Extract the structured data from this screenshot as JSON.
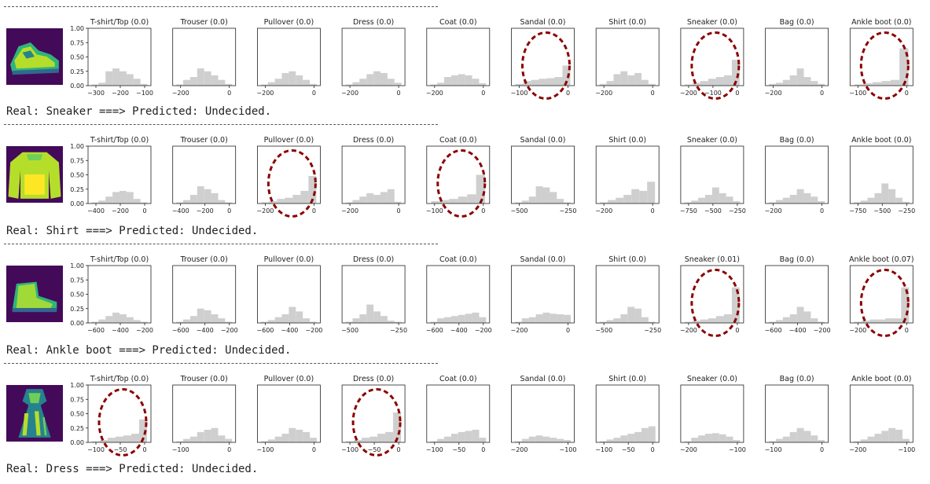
{
  "chart_data": [
    {
      "type": "bar",
      "caption": "Real: Sneaker ===> Predicted: Undecided.",
      "panels": [
        {
          "title": "T-shirt/Top (0.0)",
          "xticks": [
            "−300",
            "−200",
            "−100"
          ],
          "bars": [
            0.02,
            0.05,
            0.25,
            0.3,
            0.25,
            0.2,
            0.12,
            0.03
          ]
        },
        {
          "title": "Trouser (0.0)",
          "xticks": [
            "−200",
            "0"
          ],
          "bars": [
            0.02,
            0.1,
            0.15,
            0.3,
            0.25,
            0.18,
            0.1,
            0.03
          ]
        },
        {
          "title": "Pullover (0.0)",
          "xticks": [
            "−200",
            "0"
          ],
          "bars": [
            0.02,
            0.06,
            0.12,
            0.22,
            0.25,
            0.18,
            0.1,
            0.03
          ]
        },
        {
          "title": "Dress (0.0)",
          "xticks": [
            "−200",
            "0"
          ],
          "bars": [
            0.02,
            0.06,
            0.12,
            0.2,
            0.25,
            0.22,
            0.12,
            0.05
          ]
        },
        {
          "title": "Coat (0.0)",
          "xticks": [
            "−200",
            "0"
          ],
          "bars": [
            0.02,
            0.05,
            0.15,
            0.18,
            0.2,
            0.18,
            0.12,
            0.04
          ]
        },
        {
          "title": "Sandal (0.0)",
          "xticks": [
            "−100",
            "0"
          ],
          "bars": [
            0.03,
            0.08,
            0.1,
            0.12,
            0.13,
            0.15,
            0.35
          ]
        },
        {
          "title": "Shirt (0.0)",
          "xticks": [
            "−200",
            "0"
          ],
          "bars": [
            0.03,
            0.08,
            0.2,
            0.25,
            0.18,
            0.22,
            0.1,
            0.03
          ]
        },
        {
          "title": "Sneaker (0.0)",
          "xticks": [
            "−200",
            "−100",
            "0"
          ],
          "bars": [
            0.02,
            0.05,
            0.08,
            0.12,
            0.15,
            0.18,
            0.45
          ]
        },
        {
          "title": "Bag (0.0)",
          "xticks": [
            "−200",
            "0"
          ],
          "bars": [
            0.03,
            0.05,
            0.1,
            0.18,
            0.3,
            0.15,
            0.08,
            0.03
          ]
        },
        {
          "title": "Ankle boot (0.0)",
          "xticks": [
            "−100",
            "0"
          ],
          "bars": [
            0.02,
            0.04,
            0.06,
            0.08,
            0.1,
            0.65
          ]
        }
      ],
      "highlighted": [
        5,
        7,
        9
      ]
    },
    {
      "type": "bar",
      "caption": "Real: Shirt ===> Predicted: Undecided.",
      "panels": [
        {
          "title": "T-shirt/Top (0.0)",
          "xticks": [
            "−400",
            "−200",
            "0"
          ],
          "bars": [
            0.02,
            0.05,
            0.12,
            0.2,
            0.22,
            0.2,
            0.08,
            0.02
          ]
        },
        {
          "title": "Trouser (0.0)",
          "xticks": [
            "−400",
            "−200",
            "0"
          ],
          "bars": [
            0.02,
            0.06,
            0.15,
            0.3,
            0.25,
            0.18,
            0.06,
            0.02
          ]
        },
        {
          "title": "Pullover (0.0)",
          "xticks": [
            "−200",
            "0"
          ],
          "bars": [
            0.02,
            0.04,
            0.08,
            0.1,
            0.15,
            0.22,
            0.48
          ]
        },
        {
          "title": "Dress (0.0)",
          "xticks": [
            "−200",
            "0"
          ],
          "bars": [
            0.02,
            0.06,
            0.12,
            0.18,
            0.15,
            0.2,
            0.25,
            0.03
          ]
        },
        {
          "title": "Coat (0.0)",
          "xticks": [
            "−100",
            "0"
          ],
          "bars": [
            0.04,
            0.06,
            0.08,
            0.12,
            0.16,
            0.5
          ]
        },
        {
          "title": "Sandal (0.0)",
          "xticks": [
            "−500",
            "−250"
          ],
          "bars": [
            0.02,
            0.05,
            0.12,
            0.3,
            0.28,
            0.2,
            0.08,
            0.02
          ]
        },
        {
          "title": "Shirt (0.0)",
          "xticks": [
            "−200",
            "0"
          ],
          "bars": [
            0.02,
            0.06,
            0.1,
            0.15,
            0.25,
            0.22,
            0.38
          ]
        },
        {
          "title": "Sneaker (0.0)",
          "xticks": [
            "−750",
            "−500",
            "−250"
          ],
          "bars": [
            0.02,
            0.05,
            0.1,
            0.15,
            0.28,
            0.18,
            0.12,
            0.04
          ]
        },
        {
          "title": "Bag (0.0)",
          "xticks": [
            "−200",
            "0"
          ],
          "bars": [
            0.02,
            0.06,
            0.1,
            0.15,
            0.25,
            0.18,
            0.12,
            0.04
          ]
        },
        {
          "title": "Ankle boot (0.0)",
          "xticks": [
            "−750",
            "−500",
            "−250"
          ],
          "bars": [
            0.02,
            0.05,
            0.1,
            0.18,
            0.35,
            0.25,
            0.1,
            0.03
          ]
        }
      ],
      "highlighted": [
        2,
        4
      ]
    },
    {
      "type": "bar",
      "caption": "Real: Ankle boot ===> Predicted: Undecided.",
      "panels": [
        {
          "title": "T-shirt/Top (0.0)",
          "xticks": [
            "−600",
            "−400",
            "−200"
          ],
          "bars": [
            0.02,
            0.06,
            0.12,
            0.18,
            0.15,
            0.1,
            0.05,
            0.02
          ]
        },
        {
          "title": "Trouser (0.0)",
          "xticks": [
            "−600",
            "−400",
            "−200"
          ],
          "bars": [
            0.02,
            0.06,
            0.12,
            0.25,
            0.22,
            0.15,
            0.08,
            0.02
          ]
        },
        {
          "title": "Pullover (0.0)",
          "xticks": [
            "−600",
            "−400",
            "−200"
          ],
          "bars": [
            0.02,
            0.05,
            0.1,
            0.15,
            0.28,
            0.2,
            0.08,
            0.02
          ]
        },
        {
          "title": "Dress (0.0)",
          "xticks": [
            "−500",
            "−250"
          ],
          "bars": [
            0.02,
            0.08,
            0.15,
            0.32,
            0.2,
            0.12,
            0.04,
            0.02
          ]
        },
        {
          "title": "Coat (0.0)",
          "xticks": [
            "−600",
            "−400",
            "−200"
          ],
          "bars": [
            0.02,
            0.08,
            0.1,
            0.12,
            0.14,
            0.16,
            0.18,
            0.1
          ]
        },
        {
          "title": "Sandal (0.0)",
          "xticks": [
            "−200",
            "0"
          ],
          "bars": [
            0.02,
            0.08,
            0.1,
            0.15,
            0.18,
            0.16,
            0.15,
            0.14
          ]
        },
        {
          "title": "Shirt (0.0)",
          "xticks": [
            "−500",
            "−250"
          ],
          "bars": [
            0.02,
            0.05,
            0.08,
            0.15,
            0.28,
            0.25,
            0.1,
            0.02
          ]
        },
        {
          "title": "Sneaker (0.01)",
          "xticks": [
            "−200",
            "0"
          ],
          "bars": [
            0.02,
            0.04,
            0.06,
            0.08,
            0.12,
            0.15,
            0.62
          ]
        },
        {
          "title": "Bag (0.0)",
          "xticks": [
            "−600",
            "−400",
            "−200"
          ],
          "bars": [
            0.02,
            0.05,
            0.1,
            0.15,
            0.28,
            0.2,
            0.08,
            0.02
          ]
        },
        {
          "title": "Ankle boot (0.07)",
          "xticks": [
            "−200",
            "0"
          ],
          "bars": [
            0.02,
            0.04,
            0.06,
            0.06,
            0.08,
            0.08,
            0.62
          ]
        }
      ],
      "highlighted": [
        7,
        9
      ]
    },
    {
      "type": "bar",
      "caption": "Real: Dress ===> Predicted: Undecided.",
      "panels": [
        {
          "title": "T-shirt/Top (0.0)",
          "xticks": [
            "−100",
            "−50",
            "0"
          ],
          "bars": [
            0.02,
            0.04,
            0.08,
            0.1,
            0.12,
            0.15,
            0.4
          ]
        },
        {
          "title": "Trouser (0.0)",
          "xticks": [
            "−100",
            "0"
          ],
          "bars": [
            0.02,
            0.06,
            0.1,
            0.18,
            0.22,
            0.25,
            0.12,
            0.06
          ]
        },
        {
          "title": "Pullover (0.0)",
          "xticks": [
            "−100",
            "0"
          ],
          "bars": [
            0.02,
            0.05,
            0.1,
            0.15,
            0.25,
            0.22,
            0.18,
            0.08
          ]
        },
        {
          "title": "Dress (0.0)",
          "xticks": [
            "−100",
            "−50",
            "0"
          ],
          "bars": [
            0.02,
            0.04,
            0.08,
            0.1,
            0.15,
            0.18,
            0.52
          ]
        },
        {
          "title": "Coat (0.0)",
          "xticks": [
            "−100",
            "−50",
            "0"
          ],
          "bars": [
            0.02,
            0.06,
            0.1,
            0.15,
            0.18,
            0.2,
            0.22,
            0.08
          ]
        },
        {
          "title": "Sandal (0.0)",
          "xticks": [
            "−200",
            "−100"
          ],
          "bars": [
            0.02,
            0.06,
            0.1,
            0.12,
            0.1,
            0.08,
            0.06,
            0.04
          ]
        },
        {
          "title": "Shirt (0.0)",
          "xticks": [
            "−100",
            "−50",
            "0"
          ],
          "bars": [
            0.02,
            0.05,
            0.08,
            0.12,
            0.15,
            0.18,
            0.25,
            0.28
          ]
        },
        {
          "title": "Sneaker (0.0)",
          "xticks": [
            "−200",
            "−100"
          ],
          "bars": [
            0.02,
            0.08,
            0.12,
            0.15,
            0.16,
            0.14,
            0.1,
            0.04
          ]
        },
        {
          "title": "Bag (0.0)",
          "xticks": [
            "−100",
            "0"
          ],
          "bars": [
            0.02,
            0.06,
            0.1,
            0.18,
            0.25,
            0.2,
            0.12,
            0.04
          ]
        },
        {
          "title": "Ankle boot (0.0)",
          "xticks": [
            "−200",
            "−100"
          ],
          "bars": [
            0.02,
            0.05,
            0.1,
            0.15,
            0.2,
            0.25,
            0.22,
            0.06
          ]
        }
      ],
      "highlighted": [
        0,
        3
      ]
    }
  ],
  "yticks": [
    "1.00",
    "0.75",
    "0.50",
    "0.25",
    "0.00"
  ],
  "colors": {
    "bar": "#cfcfcf",
    "highlight": "#8b0000"
  },
  "thumbnails": [
    "sneaker-image",
    "shirt-image",
    "ankle-boot-image",
    "dress-image"
  ]
}
